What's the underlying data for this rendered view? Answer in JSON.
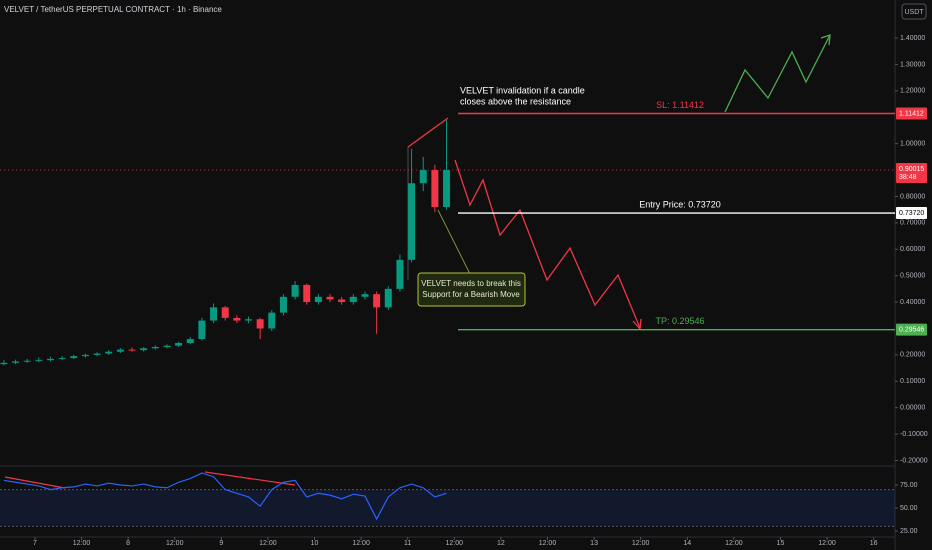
{
  "chart_data": {
    "type": "candlestick",
    "title": "VELVET / TetherUS PERPETUAL CONTRACT · 1h · Binance",
    "currency_button": "USDT",
    "up_color": "#089981",
    "down_color": "#f23645",
    "xlim": [
      -9,
      221.5
    ],
    "xticks": [
      {
        "value": 0,
        "label": "7"
      },
      {
        "value": 12,
        "label": "12:00"
      },
      {
        "value": 24,
        "label": "8"
      },
      {
        "value": 36,
        "label": "12:00"
      },
      {
        "value": 48,
        "label": "9"
      },
      {
        "value": 60,
        "label": "12:00"
      },
      {
        "value": 72,
        "label": "10"
      },
      {
        "value": 84,
        "label": "12:00"
      },
      {
        "value": 96,
        "label": "11"
      },
      {
        "value": 108,
        "label": "12:00"
      },
      {
        "value": 120,
        "label": "12"
      },
      {
        "value": 132,
        "label": "12:00"
      },
      {
        "value": 144,
        "label": "13"
      },
      {
        "value": 156,
        "label": "12:00"
      },
      {
        "value": 168,
        "label": "14"
      },
      {
        "value": 180,
        "label": "12:00"
      },
      {
        "value": 192,
        "label": "15"
      },
      {
        "value": 204,
        "label": "12:00"
      },
      {
        "value": 216,
        "label": "16"
      }
    ],
    "ylim": [
      -0.217,
      1.544
    ],
    "yticks": [
      {
        "value": 1.4,
        "label": "1.40000"
      },
      {
        "value": 1.3,
        "label": "1.30000"
      },
      {
        "value": 1.2,
        "label": "1.20000"
      },
      {
        "value": 1.0,
        "label": "1.00000"
      },
      {
        "value": 0.8,
        "label": "0.80000"
      },
      {
        "value": 0.7,
        "label": "0.70000"
      },
      {
        "value": 0.6,
        "label": "0.60000"
      },
      {
        "value": 0.5,
        "label": "0.50000"
      },
      {
        "value": 0.4,
        "label": "0.40000"
      },
      {
        "value": 0.2,
        "label": "0.20000"
      },
      {
        "value": 0.1,
        "label": "0.10000"
      },
      {
        "value": 0,
        "label": "0.00000"
      },
      {
        "value": -0.1,
        "label": "-0.10000"
      },
      {
        "value": -0.2,
        "label": "-0.20000"
      }
    ],
    "x": [
      -8,
      -5,
      -2,
      1,
      4,
      7,
      10,
      13,
      16,
      19,
      22,
      25,
      28,
      31,
      34,
      37,
      40,
      43,
      46,
      49,
      52,
      55,
      58,
      61,
      64,
      67,
      70,
      73,
      76,
      79,
      82,
      85,
      88,
      91,
      94,
      97,
      100,
      103,
      106
    ],
    "open": [
      0.165,
      0.17,
      0.175,
      0.178,
      0.18,
      0.185,
      0.188,
      0.195,
      0.2,
      0.205,
      0.212,
      0.22,
      0.218,
      0.225,
      0.23,
      0.235,
      0.245,
      0.26,
      0.33,
      0.38,
      0.34,
      0.33,
      0.335,
      0.3,
      0.36,
      0.42,
      0.465,
      0.4,
      0.42,
      0.41,
      0.4,
      0.42,
      0.43,
      0.38,
      0.45,
      0.56,
      0.85,
      0.9,
      0.76
    ],
    "high": [
      0.18,
      0.182,
      0.185,
      0.19,
      0.193,
      0.196,
      0.2,
      0.205,
      0.21,
      0.218,
      0.226,
      0.228,
      0.23,
      0.236,
      0.24,
      0.25,
      0.268,
      0.34,
      0.395,
      0.385,
      0.35,
      0.345,
      0.34,
      0.37,
      0.43,
      0.48,
      0.47,
      0.43,
      0.43,
      0.42,
      0.43,
      0.44,
      0.44,
      0.46,
      0.58,
      0.98,
      0.95,
      0.92,
      1.09
    ],
    "low": [
      0.16,
      0.165,
      0.17,
      0.172,
      0.176,
      0.18,
      0.184,
      0.19,
      0.195,
      0.2,
      0.207,
      0.212,
      0.213,
      0.22,
      0.225,
      0.23,
      0.24,
      0.255,
      0.32,
      0.33,
      0.32,
      0.32,
      0.26,
      0.29,
      0.35,
      0.41,
      0.39,
      0.39,
      0.4,
      0.39,
      0.39,
      0.41,
      0.28,
      0.37,
      0.44,
      0.55,
      0.82,
      0.74,
      0.75
    ],
    "close": [
      0.17,
      0.175,
      0.178,
      0.18,
      0.185,
      0.188,
      0.195,
      0.2,
      0.205,
      0.212,
      0.22,
      0.218,
      0.225,
      0.23,
      0.235,
      0.245,
      0.26,
      0.33,
      0.38,
      0.34,
      0.33,
      0.335,
      0.3,
      0.36,
      0.42,
      0.465,
      0.4,
      0.42,
      0.41,
      0.4,
      0.42,
      0.43,
      0.38,
      0.45,
      0.56,
      0.85,
      0.9,
      0.76,
      0.9
    ],
    "current_price": {
      "value": 0.90015,
      "label": "0.90015"
    },
    "countdown": "38:48",
    "current_color": "#f23645",
    "levels": [
      {
        "name": "SL: 1.11412",
        "price": {
          "value": 1.11412,
          "label": "1.11412"
        },
        "color": "#f23645"
      },
      {
        "name": "Entry Price: 0.73720",
        "price": {
          "value": 0.7372,
          "label": "0.73720"
        },
        "color": "#ffffff"
      },
      {
        "name": "TP: 0.29546",
        "price": {
          "value": 0.29546,
          "label": "0.29546"
        },
        "color": "#4caf50"
      }
    ],
    "annotation": [
      "VELVET invalidation if a candle",
      "closes above the resistance"
    ],
    "callout": [
      "VELVET needs to break this",
      "Support for a Bearish Move"
    ],
    "rsi": {
      "color": "#2962ff",
      "ylim": [
        15.2,
        93.5
      ],
      "band": [
        30,
        70
      ],
      "yticks": [
        {
          "value": 75,
          "label": "75.00"
        },
        {
          "value": 50,
          "label": "50.00"
        },
        {
          "value": 25,
          "label": "25.00"
        }
      ],
      "values": [
        80,
        78,
        76,
        74,
        70,
        72,
        73,
        76,
        74,
        77,
        75,
        74,
        76,
        73,
        72,
        78,
        82,
        88,
        84,
        70,
        66,
        62,
        52,
        70,
        78,
        80,
        62,
        66,
        64,
        60,
        65,
        63,
        38,
        62,
        72,
        76,
        72,
        62,
        66
      ]
    }
  }
}
